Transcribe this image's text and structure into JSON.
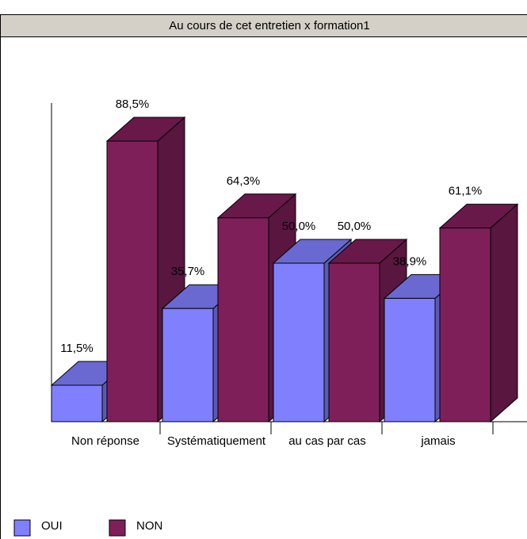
{
  "chart_data": {
    "type": "bar3d",
    "title": "Au cours de cet entretien x formation1",
    "categories": [
      "Non réponse",
      "Systématiquement",
      "au cas par cas",
      "jamais"
    ],
    "series": [
      {
        "name": "OUI",
        "color": "#8080ff",
        "values": [
          11.5,
          35.7,
          50.0,
          38.9
        ],
        "value_labels": [
          "11,5%",
          "35,7%",
          "50,0%",
          "38,9%"
        ]
      },
      {
        "name": "NON",
        "color": "#7f1f5a",
        "values": [
          88.5,
          64.3,
          50.0,
          61.1
        ],
        "value_labels": [
          "88,5%",
          "64,3%",
          "50,0%",
          "61,1%"
        ]
      }
    ],
    "ylim": [
      0,
      100
    ],
    "legend": "bottom-left"
  }
}
